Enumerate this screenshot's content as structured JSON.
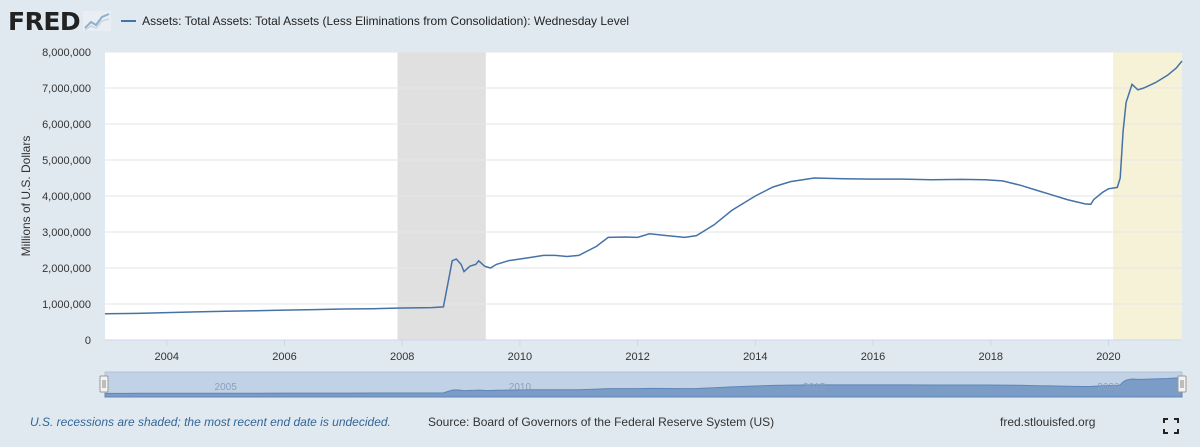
{
  "header": {
    "logo": "FRED",
    "logo_icon": "line-graph-icon"
  },
  "chart_data": {
    "type": "line",
    "title": "",
    "xlabel": "",
    "ylabel": "Millions of U.S. Dollars",
    "ylim": [
      0,
      8000000
    ],
    "xlim": [
      2002.95,
      2021.25
    ],
    "grid": true,
    "legend_position": "top-left",
    "y_ticks": [
      0,
      1000000,
      2000000,
      3000000,
      4000000,
      5000000,
      6000000,
      7000000,
      8000000
    ],
    "y_tick_labels": [
      "0",
      "1,000,000",
      "2,000,000",
      "3,000,000",
      "4,000,000",
      "5,000,000",
      "6,000,000",
      "7,000,000",
      "8,000,000"
    ],
    "x_ticks": [
      2004,
      2006,
      2008,
      2010,
      2012,
      2014,
      2016,
      2018,
      2020
    ],
    "x_tick_labels": [
      "2004",
      "2006",
      "2008",
      "2010",
      "2012",
      "2014",
      "2016",
      "2018",
      "2020"
    ],
    "recessions": [
      {
        "start": 2007.92,
        "end": 2009.42
      },
      {
        "start": 2020.08,
        "end": 2021.25
      }
    ],
    "series": [
      {
        "name": "Assets: Total Assets: Total Assets (Less Eliminations from Consolidation): Wednesday Level",
        "color": "#4572a7",
        "x": [
          2002.95,
          2003.5,
          2004.0,
          2004.5,
          2005.0,
          2005.5,
          2006.0,
          2006.5,
          2007.0,
          2007.5,
          2008.0,
          2008.5,
          2008.7,
          2008.78,
          2008.85,
          2008.92,
          2009.0,
          2009.05,
          2009.15,
          2009.25,
          2009.3,
          2009.4,
          2009.5,
          2009.6,
          2009.8,
          2010.0,
          2010.2,
          2010.4,
          2010.6,
          2010.8,
          2011.0,
          2011.3,
          2011.5,
          2011.8,
          2012.0,
          2012.2,
          2012.5,
          2012.8,
          2013.0,
          2013.3,
          2013.6,
          2014.0,
          2014.3,
          2014.6,
          2015.0,
          2015.5,
          2016.0,
          2016.5,
          2017.0,
          2017.5,
          2017.9,
          2018.2,
          2018.5,
          2018.8,
          2019.0,
          2019.3,
          2019.6,
          2019.7,
          2019.75,
          2019.9,
          2020.0,
          2020.15,
          2020.2,
          2020.25,
          2020.3,
          2020.4,
          2020.5,
          2020.6,
          2020.8,
          2021.0,
          2021.15,
          2021.25
        ],
        "values": [
          730000,
          740000,
          760000,
          780000,
          800000,
          815000,
          830000,
          845000,
          860000,
          870000,
          890000,
          900000,
          920000,
          1600000,
          2200000,
          2250000,
          2100000,
          1900000,
          2050000,
          2100000,
          2200000,
          2050000,
          2000000,
          2100000,
          2200000,
          2250000,
          2300000,
          2350000,
          2350000,
          2320000,
          2350000,
          2600000,
          2850000,
          2860000,
          2850000,
          2950000,
          2900000,
          2850000,
          2900000,
          3200000,
          3600000,
          4000000,
          4250000,
          4400000,
          4500000,
          4480000,
          4470000,
          4470000,
          4450000,
          4460000,
          4450000,
          4420000,
          4300000,
          4150000,
          4050000,
          3900000,
          3780000,
          3770000,
          3900000,
          4100000,
          4200000,
          4240000,
          4500000,
          5800000,
          6600000,
          7100000,
          6950000,
          7000000,
          7150000,
          7350000,
          7550000,
          7750000
        ]
      }
    ]
  },
  "navigator": {
    "labels": [
      "2005",
      "2010",
      "2015",
      "2020"
    ],
    "label_years": [
      2005,
      2010,
      2015,
      2020
    ]
  },
  "footer": {
    "note": "U.S. recessions are shaded; the most recent end date is undecided.",
    "source": "Source: Board of Governors of the Federal Reserve System (US)",
    "site": "fred.stlouisfed.org"
  },
  "colors": {
    "line": "#4572a7",
    "recession": "#e0e0e0",
    "recession_recent": "#f5f2d8",
    "background": "#e1e9f0"
  }
}
